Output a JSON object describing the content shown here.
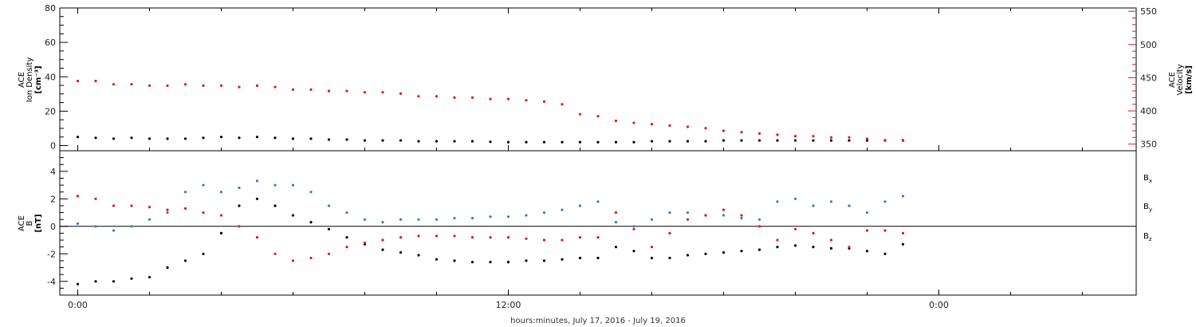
{
  "figure": {
    "xlabel": "hours:minutes, July 17, 2016 - July 19, 2016",
    "x_tick_labels": [
      "0:00",
      "12:00",
      "0:00"
    ]
  },
  "chart_data": [
    {
      "type": "scatter",
      "panel": "plasma",
      "x_unit": "hours since 2016-07-17 00:00",
      "xlim": [
        -0.5,
        29.5
      ],
      "xticks": [
        0,
        12,
        24
      ],
      "xtick_labels": [
        "0:00",
        "12:00",
        "0:00"
      ],
      "ylabel_left": [
        "ACE",
        "Ion Density",
        "[cm⁻³]"
      ],
      "ylim_left": [
        -3,
        80
      ],
      "yticks_left": [
        0,
        20,
        40,
        60,
        80
      ],
      "ylabel_right": [
        "ACE",
        "Velocity",
        "[km/s]"
      ],
      "ylim_right": [
        340,
        555
      ],
      "yticks_right": [
        350,
        400,
        450,
        500,
        550
      ],
      "series": [
        {
          "name": "",
          "axis": "left",
          "color": "#000000",
          "x": [
            0,
            0.5,
            1,
            1.5,
            2,
            2.5,
            3,
            3.5,
            4,
            4.5,
            5,
            5.5,
            6,
            6.5,
            7,
            7.5,
            8,
            8.5,
            9,
            9.5,
            10,
            10.5,
            11,
            11.5,
            12,
            12.5,
            13,
            13.5,
            14,
            14.5,
            15,
            15.5,
            16,
            16.5,
            17,
            17.5,
            18,
            18.5,
            19,
            19.5,
            20,
            20.5,
            21,
            21.5,
            22,
            22.5,
            23
          ],
          "y": [
            5,
            4.5,
            4,
            4.5,
            4,
            4,
            4,
            4.5,
            5,
            4.5,
            5,
            4.5,
            4,
            4,
            3.5,
            3.5,
            3,
            3,
            3,
            2.5,
            2.5,
            2.5,
            2.5,
            2.2,
            2,
            2,
            2,
            2,
            2,
            2,
            2,
            2,
            2.5,
            2.5,
            2.5,
            2.5,
            3,
            3,
            3,
            3,
            3,
            3,
            3,
            3,
            3,
            3,
            3
          ]
        },
        {
          "name": "",
          "axis": "right",
          "color": "#e8141a",
          "x": [
            0,
            0.5,
            1,
            1.5,
            2,
            2.5,
            3,
            3.5,
            4,
            4.5,
            5,
            5.5,
            6,
            6.5,
            7,
            7.5,
            8,
            8.5,
            9,
            9.5,
            10,
            10.5,
            11,
            11.5,
            12,
            12.5,
            13,
            13.5,
            14,
            14.5,
            15,
            15.5,
            16,
            16.5,
            17,
            17.5,
            18,
            18.5,
            19,
            19.5,
            20,
            20.5,
            21,
            21.5,
            22,
            22.5,
            23
          ],
          "y": [
            445,
            445,
            440,
            440,
            438,
            438,
            440,
            438,
            438,
            436,
            438,
            436,
            432,
            432,
            430,
            430,
            428,
            428,
            426,
            422,
            422,
            420,
            420,
            418,
            418,
            416,
            414,
            410,
            395,
            392,
            385,
            382,
            380,
            378,
            376,
            374,
            370,
            368,
            366,
            364,
            362,
            362,
            360,
            360,
            358,
            356,
            356
          ]
        }
      ]
    },
    {
      "type": "scatter",
      "panel": "magnetic field",
      "x_unit": "hours since 2016-07-17 00:00",
      "xlim": [
        -0.5,
        29.5
      ],
      "xticks": [
        0,
        12,
        24
      ],
      "xtick_labels": [
        "0:00",
        "12:00",
        "0:00"
      ],
      "ylabel": [
        "ACE",
        "B",
        "[nT]"
      ],
      "ylim": [
        -5,
        5.5
      ],
      "yticks": [
        -4,
        -2,
        0,
        2,
        4
      ],
      "zero_line": true,
      "series": [
        {
          "name": "B_x",
          "color": "#000000",
          "x": [
            0,
            0.5,
            1,
            1.5,
            2,
            2.5,
            3,
            3.5,
            4,
            4.5,
            5,
            5.5,
            6,
            6.5,
            7,
            7.5,
            8,
            8.5,
            9,
            9.5,
            10,
            10.5,
            11,
            11.5,
            12,
            12.5,
            13,
            13.5,
            14,
            14.5,
            15,
            15.5,
            16,
            16.5,
            17,
            17.5,
            18,
            18.5,
            19,
            19.5,
            20,
            20.5,
            21,
            21.5,
            22,
            22.5,
            23
          ],
          "y": [
            -4.2,
            -4,
            -4,
            -3.8,
            -3.7,
            -3,
            -2.5,
            -2,
            -0.5,
            1.5,
            2,
            1.5,
            0.8,
            0.3,
            -0.2,
            -0.8,
            -1.3,
            -1.7,
            -1.9,
            -2.1,
            -2.4,
            -2.5,
            -2.6,
            -2.6,
            -2.6,
            -2.5,
            -2.5,
            -2.4,
            -2.3,
            -2.3,
            -1.5,
            -1.8,
            -2.3,
            -2.3,
            -2.1,
            -2,
            -1.9,
            -1.8,
            -1.7,
            -1.5,
            -1.4,
            -1.5,
            -1.6,
            -1.6,
            -1.8,
            -2,
            -1.3
          ]
        },
        {
          "name": "B_y",
          "color": "#2a7fd4",
          "x": [
            0,
            0.5,
            1,
            1.5,
            2,
            2.5,
            3,
            3.5,
            4,
            4.5,
            5,
            5.5,
            6,
            6.5,
            7,
            7.5,
            8,
            8.5,
            9,
            9.5,
            10,
            10.5,
            11,
            11.5,
            12,
            12.5,
            13,
            13.5,
            14,
            14.5,
            15,
            15.5,
            16,
            16.5,
            17,
            17.5,
            18,
            18.5,
            19,
            19.5,
            20,
            20.5,
            21,
            21.5,
            22,
            22.5,
            23
          ],
          "y": [
            0.2,
            0,
            -0.3,
            0,
            0.5,
            1,
            2.5,
            3,
            2.5,
            2.8,
            3.3,
            3,
            3,
            2.5,
            1.5,
            1,
            0.5,
            0.3,
            0.5,
            0.5,
            0.5,
            0.6,
            0.6,
            0.7,
            0.7,
            0.8,
            1,
            1.2,
            1.5,
            1.8,
            0.3,
            0,
            0.5,
            1,
            1,
            0.8,
            0.8,
            0.6,
            0.5,
            1.8,
            2,
            1.5,
            1.8,
            1.5,
            1,
            1.8,
            2.2
          ]
        },
        {
          "name": "B_z",
          "color": "#e8141a",
          "x": [
            0,
            0.5,
            1,
            1.5,
            2,
            2.5,
            3,
            3.5,
            4,
            4.5,
            5,
            5.5,
            6,
            6.5,
            7,
            7.5,
            8,
            8.5,
            9,
            9.5,
            10,
            10.5,
            11,
            11.5,
            12,
            12.5,
            13,
            13.5,
            14,
            14.5,
            15,
            15.5,
            16,
            16.5,
            17,
            17.5,
            18,
            18.5,
            19,
            19.5,
            20,
            20.5,
            21,
            21.5,
            22,
            22.5,
            23
          ],
          "y": [
            2.2,
            2,
            1.5,
            1.5,
            1.4,
            1.2,
            1.3,
            1,
            0.8,
            0,
            -0.8,
            -2,
            -2.5,
            -2.3,
            -2,
            -1.5,
            -1.2,
            -1,
            -0.8,
            -0.7,
            -0.7,
            -0.7,
            -0.8,
            -0.8,
            -0.8,
            -0.9,
            -1,
            -1,
            -0.8,
            -0.8,
            1,
            -0.2,
            -1.5,
            -0.5,
            0.5,
            0.8,
            1.2,
            0.8,
            0,
            -1,
            -0.2,
            -0.5,
            -1,
            -1.5,
            -0.3,
            -0.3,
            -0.5
          ]
        }
      ],
      "legend": {
        "placement": "right, outside plot",
        "entries": [
          {
            "main": "B",
            "sub": "x",
            "color": "#000000"
          },
          {
            "main": "B",
            "sub": "y",
            "color": "#2a7fd4"
          },
          {
            "main": "B",
            "sub": "z",
            "color": "#e8141a"
          }
        ]
      }
    }
  ]
}
